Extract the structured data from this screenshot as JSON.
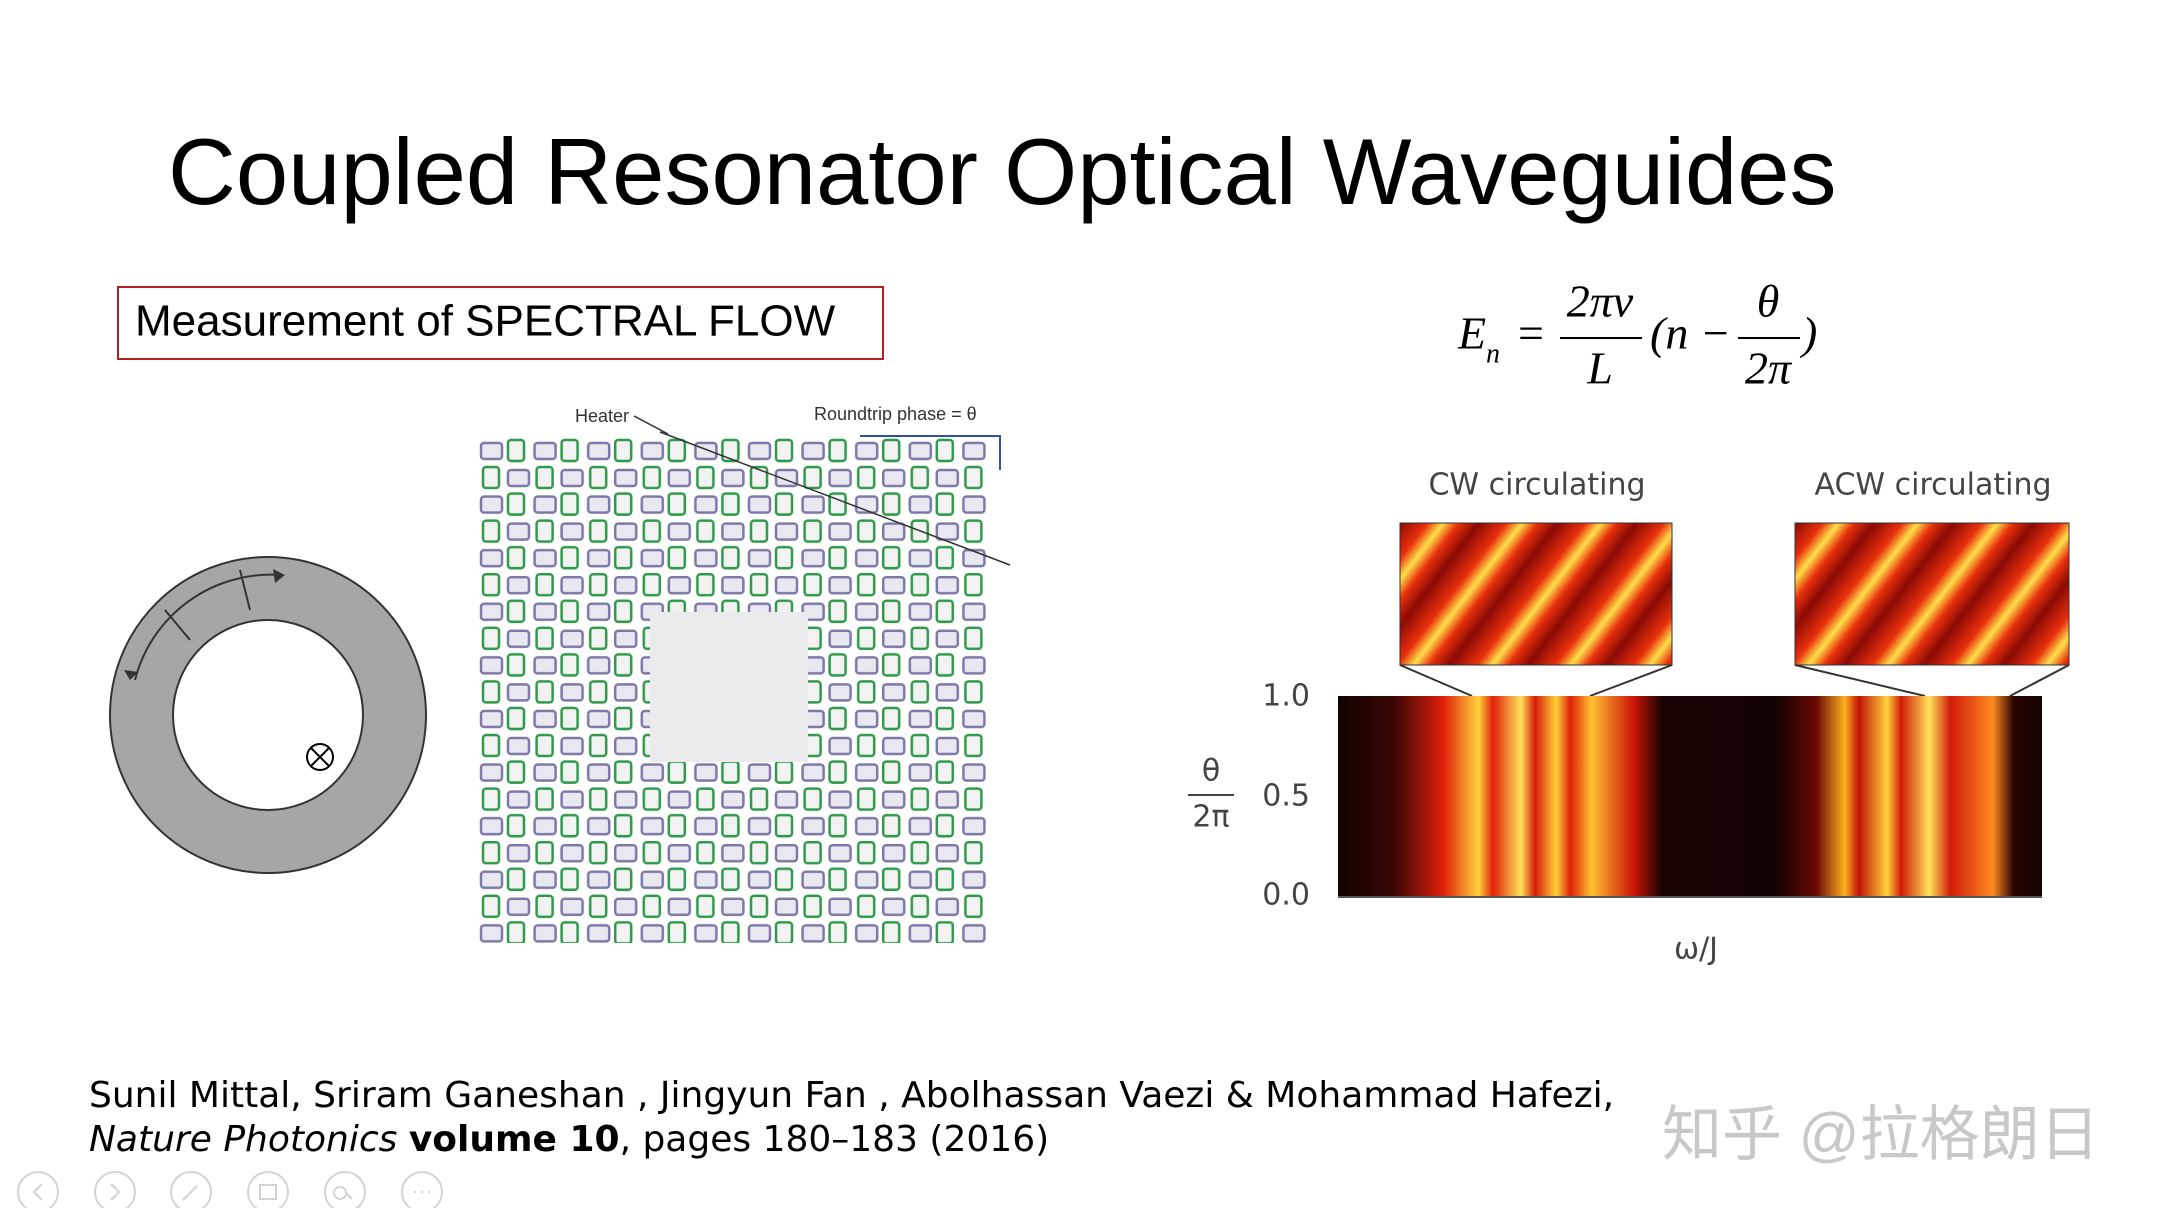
{
  "slide": {
    "title": "Coupled Resonator Optical Waveguides",
    "box_label": "Measurement of SPECTRAL FLOW",
    "equation": {
      "lhs": "E",
      "lhs_sub": "n",
      "equals": "=",
      "num1": "2πv",
      "den1": "L",
      "open": "(n −",
      "num2": "θ",
      "den2": "2π",
      "close": ")"
    },
    "lattice_labels": {
      "heater": "Heater",
      "phase": "Roundtrip phase = θ"
    },
    "spectrum": {
      "cw": "CW circulating",
      "acw": "ACW circulating",
      "yticks": [
        "1.0",
        "0.5",
        "0.0"
      ],
      "ylabel_num": "θ",
      "ylabel_den": "2π",
      "xlabel": "ω/J"
    },
    "citation": {
      "authors": "Sunil Mittal, Sriram Ganeshan , Jingyun Fan , Abolhassan Vaezi  & Mohammad Hafezi,",
      "journal": "Nature Photonics",
      "volume": "volume 10",
      "pages": ", pages 180–183 (2016)"
    },
    "watermark": "知乎 @拉格朗日"
  }
}
